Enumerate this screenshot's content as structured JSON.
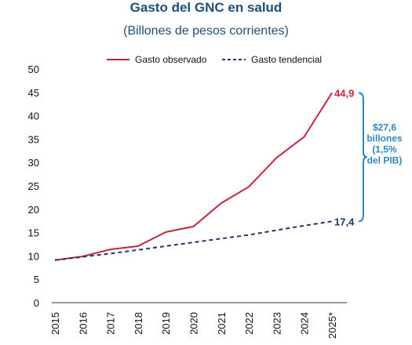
{
  "chart_data": {
    "type": "line",
    "title": "Gasto del GNC en salud",
    "subtitle": "(Billones de pesos corrientes)",
    "categories": [
      "2015",
      "2016",
      "2017",
      "2018",
      "2019",
      "2020",
      "2021",
      "2022",
      "2023",
      "2024",
      "2025*"
    ],
    "series": [
      {
        "name": "Gasto observado",
        "color": "#c8243b",
        "style": "solid",
        "values": [
          9.1,
          9.9,
          11.4,
          12.1,
          15.1,
          16.3,
          21.3,
          24.8,
          31.0,
          35.5,
          44.9
        ]
      },
      {
        "name": "Gasto tendencial",
        "color": "#1f3864",
        "style": "dashed",
        "values": [
          9.1,
          9.8,
          10.5,
          11.3,
          12.1,
          12.9,
          13.7,
          14.5,
          15.5,
          16.5,
          17.4
        ]
      }
    ],
    "ylim": [
      0,
      50
    ],
    "yticks": [
      0,
      5,
      10,
      15,
      20,
      25,
      30,
      35,
      40,
      45,
      50
    ],
    "grid": false,
    "legend": "top-center",
    "annotations": {
      "end_label_observed": "44,9",
      "end_label_trend": "17,4",
      "gap_label_lines": [
        "$27,6",
        "billones",
        "(1,5%",
        "del PIB)"
      ],
      "gap_color": "#2e86c1"
    }
  }
}
